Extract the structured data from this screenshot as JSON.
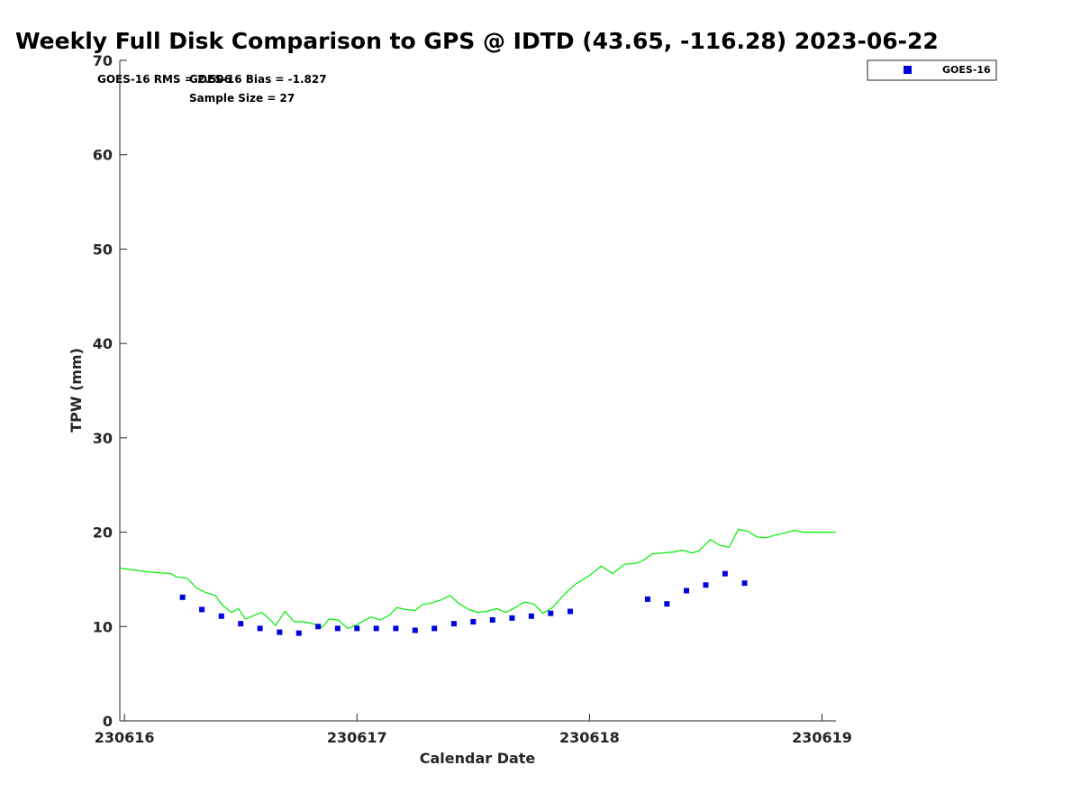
{
  "chart_data": {
    "type": "scatter",
    "title": "Weekly Full Disk Comparison to GPS @ IDTD (43.65, -116.28) 2023-06-22",
    "xlabel": "Calendar Date",
    "ylabel": "TPW (mm)",
    "xlim": [
      230615.98,
      230619.06
    ],
    "ylim": [
      0,
      70
    ],
    "xticks": [
      {
        "value": 230616,
        "label": "230616"
      },
      {
        "value": 230617,
        "label": "230617"
      },
      {
        "value": 230618,
        "label": "230618"
      },
      {
        "value": 230619,
        "label": "230619"
      }
    ],
    "yticks": [
      {
        "value": 0,
        "label": "0"
      },
      {
        "value": 10,
        "label": "10"
      },
      {
        "value": 20,
        "label": "20"
      },
      {
        "value": 30,
        "label": "30"
      },
      {
        "value": 40,
        "label": "40"
      },
      {
        "value": 50,
        "label": "50"
      },
      {
        "value": 60,
        "label": "60"
      },
      {
        "value": 70,
        "label": "70"
      }
    ],
    "grid": false,
    "legend": {
      "position": "top-right",
      "entries": [
        "GOES-16"
      ]
    },
    "annotations": [
      "GOES-16 RMS = 2.506",
      "GOES-16 Bias = -1.827",
      "Sample Size = 27"
    ],
    "series": [
      {
        "name": "GOES-16",
        "kind": "scatter",
        "color": "#0000dd",
        "x": [
          230616.25,
          230616.333,
          230616.417,
          230616.5,
          230616.583,
          230616.667,
          230616.75,
          230616.833,
          230616.917,
          230617.0,
          230617.083,
          230617.167,
          230617.25,
          230617.333,
          230617.417,
          230617.5,
          230617.583,
          230617.667,
          230617.75,
          230617.833,
          230617.917,
          230618.25,
          230618.333,
          230618.417,
          230618.5,
          230618.583,
          230618.667
        ],
        "y": [
          13.1,
          11.8,
          11.1,
          10.3,
          9.8,
          9.4,
          9.3,
          10.0,
          9.8,
          9.8,
          9.8,
          9.8,
          9.6,
          9.8,
          10.3,
          10.5,
          10.7,
          10.9,
          11.1,
          11.4,
          11.6,
          12.9,
          12.4,
          13.8,
          14.4,
          15.6,
          14.6
        ]
      },
      {
        "kind": "line",
        "color": "#00ee00",
        "x": [
          230615.98,
          230616.04,
          230616.1,
          230616.15,
          230616.2,
          230616.22,
          230616.27,
          230616.31,
          230616.35,
          230616.39,
          230616.42,
          230616.46,
          230616.49,
          230616.52,
          230616.56,
          230616.59,
          230616.62,
          230616.65,
          230616.69,
          230616.73,
          230616.77,
          230616.81,
          230616.85,
          230616.88,
          230616.92,
          230616.96,
          230617.0,
          230617.02,
          230617.06,
          230617.1,
          230617.14,
          230617.17,
          230617.21,
          230617.25,
          230617.28,
          230617.32,
          230617.36,
          230617.4,
          230617.44,
          230617.48,
          230617.52,
          230617.56,
          230617.6,
          230617.64,
          230617.68,
          230617.72,
          230617.76,
          230617.8,
          230617.84,
          230617.87,
          230617.9,
          230617.94,
          230618.0,
          230618.05,
          230618.1,
          230618.15,
          230618.2,
          230618.23,
          230618.27,
          230618.32,
          230618.36,
          230618.4,
          230618.44,
          230618.47,
          230618.52,
          230618.56,
          230618.6,
          230618.64,
          230618.68,
          230618.72,
          230618.76,
          230618.8,
          230618.84,
          230618.88,
          230618.92,
          230618.96,
          230619.0,
          230619.04,
          230619.06
        ],
        "y": [
          16.2,
          16.0,
          15.8,
          15.7,
          15.6,
          15.3,
          15.1,
          14.1,
          13.6,
          13.3,
          12.3,
          11.5,
          11.9,
          10.8,
          11.2,
          11.5,
          10.9,
          10.1,
          11.6,
          10.5,
          10.5,
          10.3,
          9.9,
          10.8,
          10.7,
          9.8,
          10.2,
          10.5,
          11.0,
          10.7,
          11.2,
          12.0,
          11.8,
          11.7,
          12.3,
          12.5,
          12.8,
          13.3,
          12.4,
          11.8,
          11.5,
          11.6,
          11.9,
          11.5,
          12.0,
          12.6,
          12.4,
          11.4,
          12.0,
          12.8,
          13.6,
          14.5,
          15.4,
          16.4,
          15.6,
          16.6,
          16.7,
          17.0,
          17.7,
          17.8,
          17.9,
          18.1,
          17.8,
          18.0,
          19.2,
          18.6,
          18.4,
          20.3,
          20.1,
          19.5,
          19.4,
          19.7,
          19.9,
          20.2,
          20.0,
          20.0,
          20.0,
          20.0,
          20.0
        ]
      }
    ]
  }
}
